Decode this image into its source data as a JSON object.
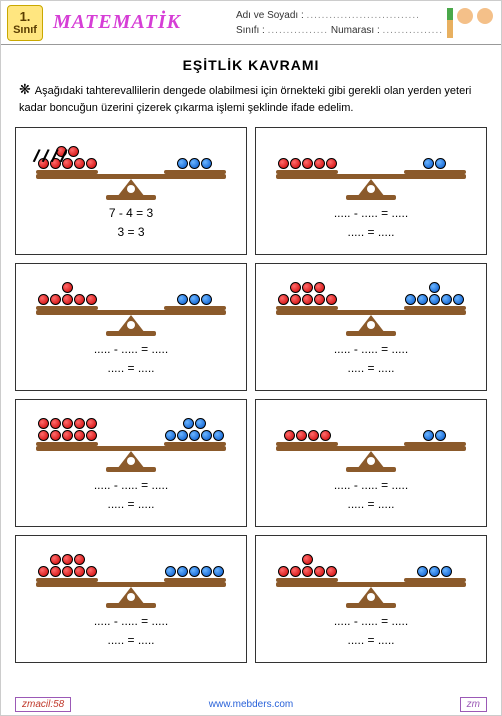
{
  "header": {
    "grade_num": "1.",
    "grade_label": "Sınıf",
    "title": "MATEMATİK",
    "name_label": "Adı ve Soyadı :",
    "name_dots": "..............................",
    "class_label": "Sınıfı :",
    "class_dots": "................",
    "num_label": "Numarası :",
    "num_dots": "................"
  },
  "main_title": "EŞİTLİK  KAVRAMI",
  "instruction": "Aşağıdaki tahterevallilerin dengede olabilmesi için örnekteki gibi gerekli olan yerden yeteri kadar boncuğun üzerini çizerek çıkarma işlemi şeklinde ifade edelim.",
  "cells": [
    {
      "left_red": 7,
      "right_blue": 3,
      "crossed": 4,
      "line1": "7  -  4  =  3",
      "line2": "3  =  3"
    },
    {
      "left_red": 5,
      "right_blue": 2,
      "crossed": 0,
      "line1": ".....   -   .....   =   .....",
      "line2": ".....   =   ....."
    },
    {
      "left_red": 6,
      "right_blue": 3,
      "crossed": 0,
      "line1": ".....   -   .....   =   .....",
      "line2": ".....   =   ....."
    },
    {
      "left_red": 8,
      "right_blue": 6,
      "crossed": 0,
      "line1": ".....   -   .....   =   .....",
      "line2": ".....   =   ....."
    },
    {
      "left_red": 10,
      "right_blue": 7,
      "crossed": 0,
      "line1": ".....   -   .....   =   .....",
      "line2": ".....   =   ....."
    },
    {
      "left_red": 4,
      "right_blue": 2,
      "crossed": 0,
      "line1": ".....   -   .....   =   .....",
      "line2": ".....   =   ....."
    },
    {
      "left_red": 8,
      "right_blue": 5,
      "crossed": 0,
      "line1": ".....   -   .....   =   .....",
      "line2": ".....   =   ....."
    },
    {
      "left_red": 6,
      "right_blue": 3,
      "crossed": 0,
      "line1": ".....   -   .....   =   .....",
      "line2": ".....   =   ....."
    }
  ],
  "footer": {
    "left": "zmacil:58",
    "url": "www.mebders.com",
    "right": "zm"
  }
}
